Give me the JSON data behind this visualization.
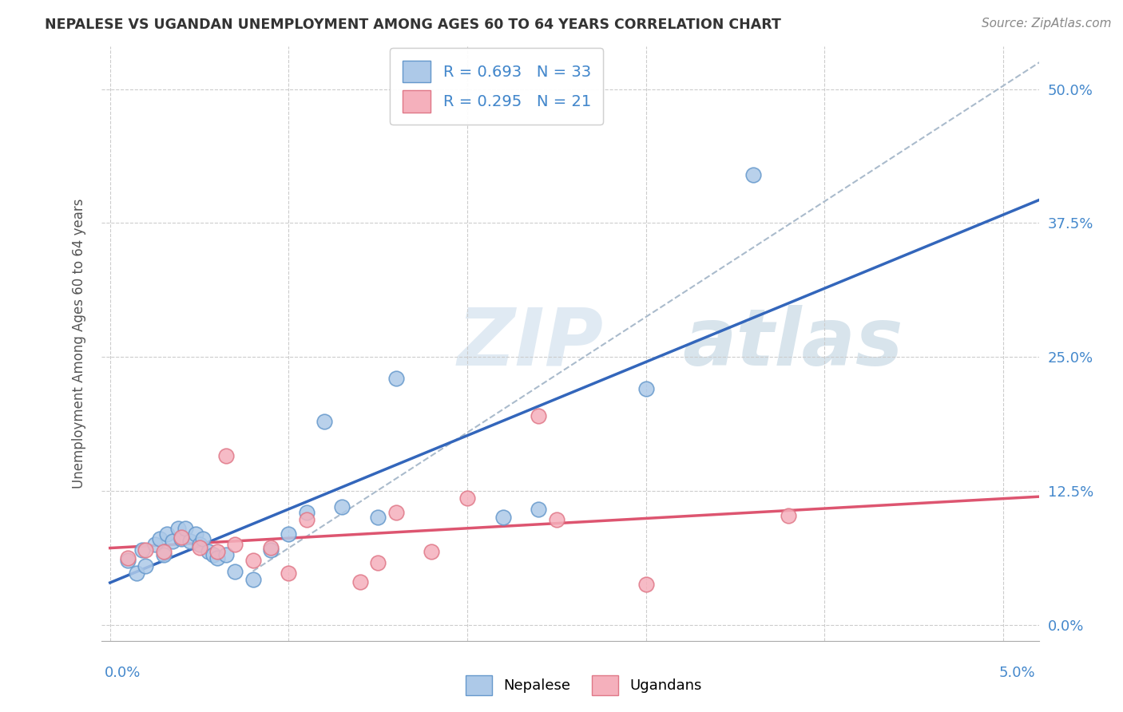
{
  "title": "NEPALESE VS UGANDAN UNEMPLOYMENT AMONG AGES 60 TO 64 YEARS CORRELATION CHART",
  "source": "Source: ZipAtlas.com",
  "ylabel": "Unemployment Among Ages 60 to 64 years",
  "ytick_labels": [
    "0.0%",
    "12.5%",
    "25.0%",
    "37.5%",
    "50.0%"
  ],
  "ytick_values": [
    0.0,
    12.5,
    25.0,
    37.5,
    50.0
  ],
  "xtick_values": [
    0.0,
    1.0,
    2.0,
    3.0,
    4.0,
    5.0
  ],
  "xlim": [
    -0.05,
    5.2
  ],
  "ylim": [
    -1.5,
    54.0
  ],
  "nepalese_color": "#adc9e8",
  "nepalese_edge": "#6699cc",
  "ugandan_color": "#f5b0bc",
  "ugandan_edge": "#e07888",
  "line_nepalese_color": "#3366bb",
  "line_ugandan_color": "#dd5570",
  "line_dashed_color": "#aabbcc",
  "R_nepalese": "0.693",
  "N_nepalese": "33",
  "R_ugandan": "0.295",
  "N_ugandan": "21",
  "watermark_zip": "ZIP",
  "watermark_atlas": "atlas",
  "nepalese_x": [
    0.1,
    0.15,
    0.18,
    0.2,
    0.25,
    0.28,
    0.3,
    0.32,
    0.35,
    0.38,
    0.4,
    0.42,
    0.45,
    0.48,
    0.5,
    0.52,
    0.55,
    0.58,
    0.6,
    0.65,
    0.7,
    0.8,
    0.9,
    1.0,
    1.1,
    1.2,
    1.3,
    1.5,
    1.6,
    2.2,
    2.4,
    3.0,
    3.6
  ],
  "nepalese_y": [
    6.0,
    4.8,
    7.0,
    5.5,
    7.5,
    8.0,
    6.5,
    8.5,
    7.8,
    9.0,
    8.0,
    9.0,
    7.8,
    8.5,
    7.5,
    8.0,
    6.8,
    6.5,
    6.2,
    6.5,
    5.0,
    4.2,
    7.0,
    8.5,
    10.5,
    19.0,
    11.0,
    10.0,
    23.0,
    10.0,
    10.8,
    22.0,
    42.0
  ],
  "ugandan_x": [
    0.1,
    0.2,
    0.3,
    0.4,
    0.5,
    0.6,
    0.65,
    0.7,
    0.8,
    0.9,
    1.0,
    1.1,
    1.4,
    1.5,
    1.6,
    1.8,
    2.0,
    2.4,
    2.5,
    3.0,
    3.8
  ],
  "ugandan_y": [
    6.2,
    7.0,
    6.8,
    8.2,
    7.2,
    6.8,
    15.8,
    7.5,
    6.0,
    7.2,
    4.8,
    9.8,
    4.0,
    5.8,
    10.5,
    6.8,
    11.8,
    19.5,
    9.8,
    3.8,
    10.2
  ]
}
